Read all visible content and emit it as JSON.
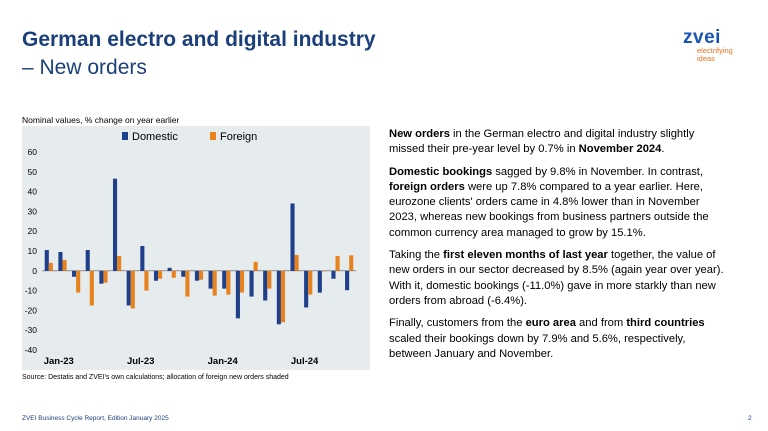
{
  "header": {
    "title": "German electro and digital industry",
    "subtitle": "– New orders"
  },
  "logo": {
    "wordmark": "zvei",
    "tagline_line1": "electrifying",
    "tagline_line2": "ideas"
  },
  "chart_note": "Nominal values, % change on year earlier",
  "source": "Source: Destatis and ZVEI's own calculations; allocation of foreign new orders shaded",
  "footer": {
    "report": "ZVEI Business Cycle Report, Edition January 2025",
    "page": "2"
  },
  "colors": {
    "domestic": "#1f3f8a",
    "foreign": "#e8821e",
    "chart_background": "#e6ebee",
    "title": "#1a3f7a"
  },
  "chart_data": {
    "type": "bar",
    "categories": [
      "Jan-23",
      "Feb-23",
      "Mar-23",
      "Apr-23",
      "May-23",
      "Jun-23",
      "Jul-23",
      "Aug-23",
      "Sep-23",
      "Oct-23",
      "Nov-23",
      "Dec-23",
      "Jan-24",
      "Feb-24",
      "Mar-24",
      "Apr-24",
      "May-24",
      "Jun-24",
      "Jul-24",
      "Aug-24",
      "Sep-24",
      "Oct-24",
      "Nov-24"
    ],
    "x_tick_labels": [
      {
        "index": 0,
        "label": "Jan-23"
      },
      {
        "index": 6,
        "label": "Jul-23"
      },
      {
        "index": 12,
        "label": "Jan-24"
      },
      {
        "index": 18,
        "label": "Jul-24"
      }
    ],
    "series": [
      {
        "name": "Domestic",
        "values": [
          10.5,
          9.5,
          -3,
          10.5,
          -6.5,
          46.5,
          -17.5,
          12.5,
          -5,
          1.5,
          -3,
          -5,
          -9,
          -9,
          -24,
          -13,
          -15,
          -27,
          34,
          -18.5,
          -11,
          -4,
          -9.8
        ]
      },
      {
        "name": "Foreign",
        "values": [
          4,
          5.5,
          -11,
          -17.5,
          -6,
          7.5,
          -19,
          -10,
          -4,
          -3.5,
          -13,
          -4.5,
          -12.5,
          -12,
          -11,
          4.5,
          -9,
          -26,
          8,
          -12,
          0,
          7.5,
          7.8
        ]
      }
    ],
    "yticks": [
      60,
      50,
      40,
      30,
      20,
      10,
      0,
      -10,
      -20,
      -30,
      -40
    ],
    "ylim": [
      -42,
      62
    ],
    "legend_position": "top-center",
    "grid": false
  },
  "text": {
    "p1": [
      {
        "t": "New orders",
        "b": true
      },
      {
        "t": " in the German electro and digital industry slightly missed their pre-year level by 0.7% in ",
        "b": false
      },
      {
        "t": "November 2024",
        "b": true
      },
      {
        "t": ".",
        "b": false
      }
    ],
    "p2": [
      {
        "t": "Domestic bookings",
        "b": true
      },
      {
        "t": " sagged by 9.8% in November. In contrast, ",
        "b": false
      },
      {
        "t": "foreign orders",
        "b": true
      },
      {
        "t": " were up 7.8% compared to a year earlier. Here, eurozone clients' orders came in 4.8% lower than in November 2023, whereas new bookings from business partners outside the common currency area managed to grow by 15.1%.",
        "b": false
      }
    ],
    "p3": [
      {
        "t": "Taking the ",
        "b": false
      },
      {
        "t": "first eleven months of last year",
        "b": true
      },
      {
        "t": " together, the value of new orders in our sector decreased by 8.5% (again year over year). With it, domestic bookings (-11.0%) gave in more starkly than new orders from abroad (-6.4%).",
        "b": false
      }
    ],
    "p4": [
      {
        "t": "Finally, customers from the ",
        "b": false
      },
      {
        "t": "euro area",
        "b": true
      },
      {
        "t": " and from ",
        "b": false
      },
      {
        "t": "third countries",
        "b": true
      },
      {
        "t": " scaled their bookings down by 7.9% and 5.6%, respectively, between January and November.",
        "b": false
      }
    ]
  }
}
